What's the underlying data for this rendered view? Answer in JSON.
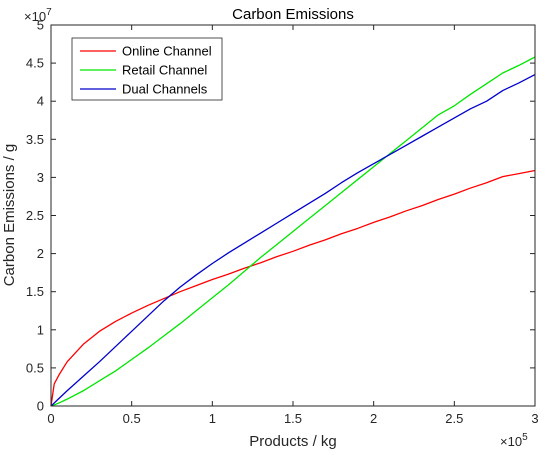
{
  "chart_data": {
    "type": "line",
    "title": "Carbon Emissions",
    "xlabel": "Products / kg",
    "ylabel": "Carbon Emissions / g",
    "x_exponent_base": "×10",
    "x_exponent_power": "5",
    "y_exponent_base": "×10",
    "y_exponent_power": "7",
    "xlim": [
      0,
      3
    ],
    "ylim": [
      0,
      5
    ],
    "x_ticks": [
      0,
      0.5,
      1,
      1.5,
      2,
      2.5,
      3
    ],
    "x_tick_labels": [
      "0",
      "0.5",
      "1",
      "1.5",
      "2",
      "2.5",
      "3"
    ],
    "y_ticks": [
      0,
      0.5,
      1,
      1.5,
      2,
      2.5,
      3,
      3.5,
      4,
      4.5,
      5
    ],
    "y_tick_labels": [
      "0",
      "0.5",
      "1",
      "1.5",
      "2",
      "2.5",
      "3",
      "3.5",
      "4",
      "4.5",
      "5"
    ],
    "grid": false,
    "legend_position": "top-left",
    "x": [
      0,
      0.02,
      0.05,
      0.1,
      0.2,
      0.3,
      0.4,
      0.5,
      0.6,
      0.7,
      0.8,
      0.9,
      1.0,
      1.1,
      1.2,
      1.3,
      1.4,
      1.5,
      1.6,
      1.7,
      1.8,
      1.9,
      2.0,
      2.1,
      2.2,
      2.3,
      2.4,
      2.5,
      2.6,
      2.7,
      2.8,
      2.9,
      3.0
    ],
    "series": [
      {
        "name": "Online Channel",
        "color": "#ff0000",
        "values": [
          0,
          0.29,
          0.41,
          0.58,
          0.81,
          0.98,
          1.11,
          1.22,
          1.32,
          1.41,
          1.5,
          1.58,
          1.66,
          1.73,
          1.81,
          1.88,
          1.96,
          2.03,
          2.11,
          2.18,
          2.26,
          2.33,
          2.41,
          2.48,
          2.56,
          2.63,
          2.71,
          2.78,
          2.86,
          2.93,
          3.01,
          3.05,
          3.09
        ]
      },
      {
        "name": "Retail Channel",
        "color": "#00e600",
        "values": [
          0,
          0.015,
          0.04,
          0.09,
          0.2,
          0.33,
          0.46,
          0.61,
          0.76,
          0.92,
          1.08,
          1.25,
          1.42,
          1.59,
          1.77,
          1.95,
          2.12,
          2.29,
          2.46,
          2.63,
          2.8,
          2.97,
          3.14,
          3.31,
          3.48,
          3.65,
          3.82,
          3.94,
          4.09,
          4.23,
          4.37,
          4.47,
          4.58
        ]
      },
      {
        "name": "Dual Channels",
        "color": "#0000cc",
        "values": [
          0,
          0.04,
          0.1,
          0.2,
          0.39,
          0.58,
          0.78,
          0.98,
          1.18,
          1.38,
          1.56,
          1.72,
          1.87,
          2.01,
          2.14,
          2.27,
          2.4,
          2.53,
          2.66,
          2.79,
          2.93,
          3.06,
          3.18,
          3.3,
          3.42,
          3.54,
          3.66,
          3.78,
          3.9,
          4.0,
          4.14,
          4.24,
          4.35
        ]
      }
    ]
  }
}
